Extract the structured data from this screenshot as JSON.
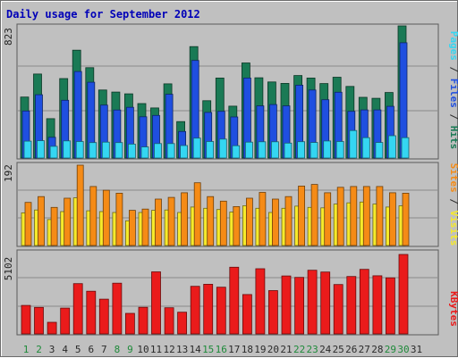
{
  "title": "Daily usage for September 2012",
  "colors": {
    "hits": "#1a7a55",
    "files": "#1f4fe0",
    "pages": "#34d6f2",
    "visits": "#f58b16",
    "sites": "#f6ea2b",
    "kbytes": "#ea1b1b",
    "weekend_label": "#1e8a3a",
    "weekday_label": "#2a2a2a",
    "title": "#0000b8",
    "sep": "#2a2a2a"
  },
  "chart_data": [
    {
      "type": "bar",
      "panel": "hits-files-pages",
      "ymax_label": "823",
      "legend_parts": [
        {
          "text": "Pages",
          "color": "#34d6f2"
        },
        {
          "text": " / ",
          "color": "#2a2a2a"
        },
        {
          "text": "Files",
          "color": "#1f4fe0"
        },
        {
          "text": " / ",
          "color": "#2a2a2a"
        },
        {
          "text": "Hits",
          "color": "#1a7a55"
        }
      ],
      "categories": [
        "1",
        "2",
        "3",
        "4",
        "5",
        "6",
        "7",
        "8",
        "9",
        "10",
        "11",
        "12",
        "13",
        "14",
        "15",
        "16",
        "17",
        "18",
        "19",
        "20",
        "21",
        "22",
        "23",
        "24",
        "25",
        "26",
        "27",
        "28",
        "29",
        "30",
        "31"
      ],
      "series": [
        {
          "name": "Hits",
          "values": [
            380,
            523,
            245,
            495,
            672,
            563,
            424,
            411,
            400,
            339,
            312,
            462,
            227,
            694,
            357,
            498,
            323,
            592,
            500,
            474,
            465,
            514,
            498,
            464,
            503,
            446,
            378,
            372,
            408,
            823,
            0
          ]
        },
        {
          "name": "Files",
          "values": [
            293,
            394,
            129,
            360,
            539,
            472,
            330,
            299,
            316,
            257,
            265,
            397,
            165,
            608,
            284,
            291,
            256,
            498,
            325,
            333,
            325,
            454,
            424,
            363,
            410,
            291,
            300,
            300,
            322,
            718,
            0
          ]
        },
        {
          "name": "Pages",
          "values": [
            105,
            108,
            73,
            107,
            103,
            96,
            99,
            96,
            87,
            69,
            90,
            90,
            78,
            124,
            103,
            118,
            77,
            99,
            101,
            101,
            93,
            102,
            97,
            106,
            103,
            171,
            127,
            97,
            139,
            127,
            0
          ]
        }
      ]
    },
    {
      "type": "bar",
      "panel": "visits-sites",
      "ymax_label": "192",
      "legend_parts": [
        {
          "text": "Sites",
          "color": "#f58b16"
        },
        {
          "text": " / ",
          "color": "#2a2a2a"
        },
        {
          "text": "Visits",
          "color": "#f6ea2b"
        }
      ],
      "categories": [
        "1",
        "2",
        "3",
        "4",
        "5",
        "6",
        "7",
        "8",
        "9",
        "10",
        "11",
        "12",
        "13",
        "14",
        "15",
        "16",
        "17",
        "18",
        "19",
        "20",
        "21",
        "22",
        "23",
        "24",
        "25",
        "26",
        "27",
        "28",
        "29",
        "30",
        "31"
      ],
      "series": [
        {
          "name": "Visits",
          "values": [
            78,
            85,
            62,
            81,
            114,
            83,
            81,
            79,
            59,
            79,
            84,
            85,
            79,
            92,
            89,
            86,
            80,
            95,
            89,
            79,
            89,
            94,
            91,
            90,
            99,
            102,
            104,
            99,
            92,
            95,
            0
          ]
        },
        {
          "name": "Sites",
          "values": [
            103,
            117,
            91,
            113,
            192,
            141,
            132,
            125,
            84,
            87,
            111,
            115,
            126,
            150,
            117,
            106,
            93,
            113,
            127,
            111,
            117,
            142,
            146,
            126,
            139,
            141,
            141,
            141,
            126,
            125,
            0
          ]
        }
      ]
    },
    {
      "type": "bar",
      "panel": "kbytes",
      "ymax_label": "5102",
      "legend_parts": [
        {
          "text": "KBytes",
          "color": "#ea1b1b"
        }
      ],
      "categories": [
        "1",
        "2",
        "3",
        "4",
        "5",
        "6",
        "7",
        "8",
        "9",
        "10",
        "11",
        "12",
        "13",
        "14",
        "15",
        "16",
        "17",
        "18",
        "19",
        "20",
        "21",
        "22",
        "23",
        "24",
        "25",
        "26",
        "27",
        "28",
        "29",
        "30",
        "31"
      ],
      "series": [
        {
          "name": "KBytes",
          "values": [
            1828,
            1700,
            743,
            1657,
            3228,
            2740,
            2230,
            3256,
            1321,
            1707,
            3983,
            1678,
            1392,
            3057,
            3186,
            2997,
            4280,
            2530,
            4183,
            2783,
            3720,
            3630,
            4085,
            3973,
            3172,
            3687,
            4145,
            3730,
            3600,
            5102,
            0
          ]
        }
      ]
    }
  ]
}
